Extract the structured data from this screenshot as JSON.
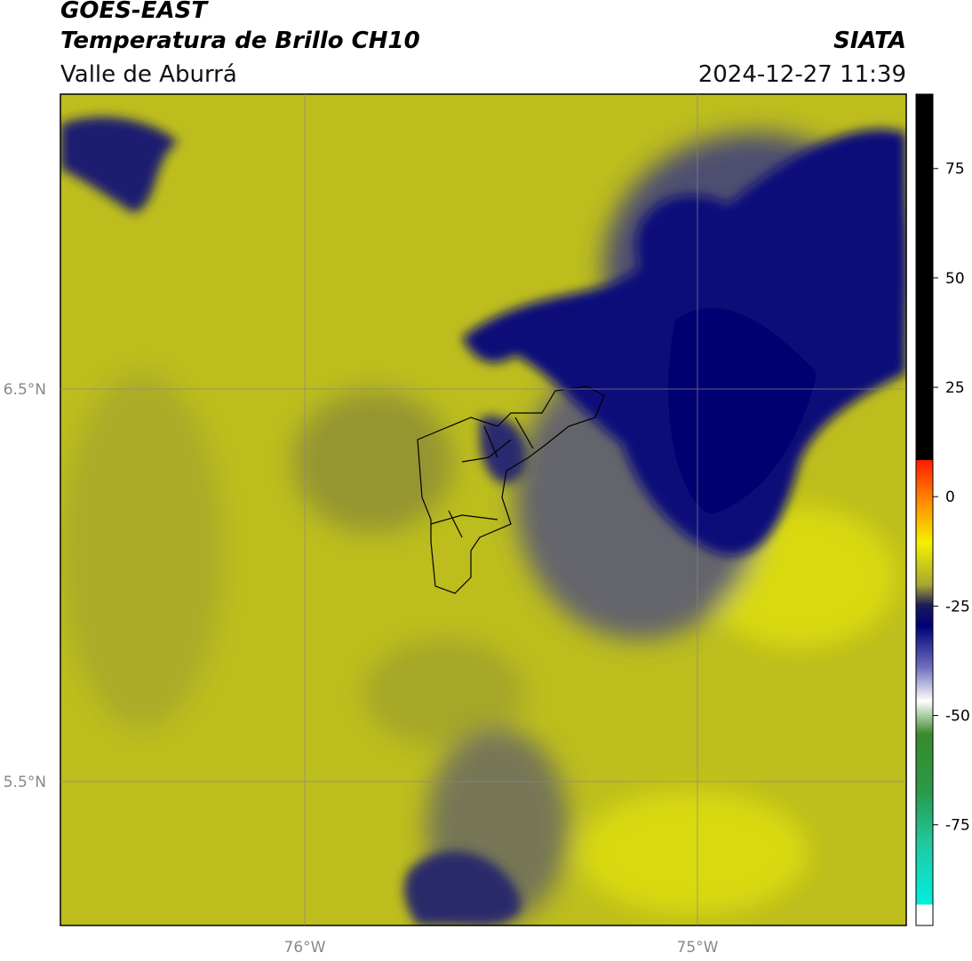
{
  "header": {
    "title": "GOES-EAST",
    "subtitle": "Temperatura de Brillo CH10",
    "source": "SIATA",
    "region": "Valle de Aburrá",
    "datetime": "2024-12-27 11:39"
  },
  "map": {
    "lat_labels": [
      "6.5°N",
      "5.5°N"
    ],
    "lon_labels": [
      "76°W",
      "75°W"
    ]
  },
  "colorbar": {
    "range": [
      -98,
      92
    ],
    "ticks": [
      75,
      50,
      25,
      0,
      -25,
      -50,
      -75
    ]
  }
}
